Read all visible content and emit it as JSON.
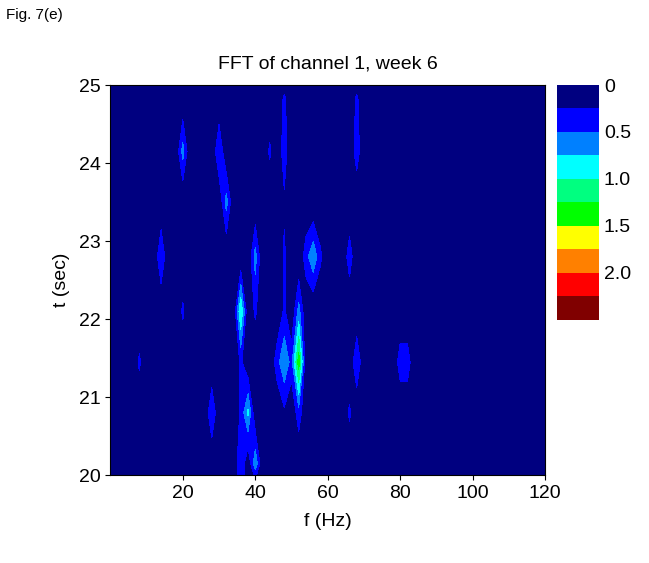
{
  "chart_data": {
    "type": "contour",
    "figure_label": "Fig. 7(e)",
    "title": "FFT of channel 1, week 6",
    "x_label": "f (Hz)",
    "y_label": "t (sec)",
    "x": [
      0,
      2,
      4,
      6,
      8,
      10,
      12,
      14,
      16,
      18,
      20,
      22,
      24,
      26,
      28,
      30,
      32,
      34,
      36,
      38,
      40,
      42,
      44,
      46,
      48,
      50,
      52,
      54,
      56,
      58,
      60,
      62,
      64,
      66,
      68,
      70,
      72,
      74,
      76,
      78,
      80,
      82,
      84,
      86,
      88,
      90,
      92,
      94,
      96,
      98,
      100,
      102,
      104,
      106,
      108,
      110,
      112,
      114,
      116,
      118,
      120
    ],
    "y": [
      20.0,
      20.15,
      20.8,
      21.45,
      22.1,
      22.8,
      23.5,
      24.15,
      24.85,
      25.0
    ],
    "z": [
      [
        0,
        0,
        0,
        0,
        0,
        0,
        0,
        0,
        0,
        0,
        0,
        0,
        0,
        0,
        0,
        0,
        0,
        0,
        0.5,
        0,
        0.3,
        0,
        0,
        0,
        0,
        0,
        0,
        0,
        0,
        0,
        0,
        0,
        0,
        0,
        0,
        0,
        0,
        0,
        0,
        0,
        0,
        0,
        0,
        0,
        0,
        0,
        0,
        0,
        0,
        0,
        0,
        0,
        0,
        0,
        0,
        0,
        0,
        0,
        0,
        0,
        0
      ],
      [
        0,
        0,
        0,
        0,
        0,
        0,
        0,
        0,
        0,
        0,
        0,
        0,
        0,
        0,
        0,
        0,
        0,
        0,
        0.5,
        0,
        0.7,
        0,
        0,
        0,
        0,
        0,
        0,
        0,
        0,
        0,
        0,
        0,
        0,
        0,
        0,
        0,
        0,
        0,
        0,
        0,
        0,
        0,
        0,
        0.1,
        0,
        0,
        0,
        0,
        0,
        0,
        0,
        0,
        0,
        0.15,
        0,
        0,
        0,
        0,
        0,
        0,
        0
      ],
      [
        0,
        0,
        0,
        0,
        0,
        0,
        0,
        0,
        0,
        0,
        0,
        0,
        0,
        0,
        0.5,
        0,
        0,
        0,
        0.3,
        0.8,
        0,
        0,
        0,
        0,
        0.2,
        0,
        0.4,
        0,
        0,
        0,
        0,
        0.2,
        0,
        0.3,
        0,
        0,
        0,
        0,
        0,
        0,
        0,
        0,
        0,
        0,
        0,
        0,
        0,
        0,
        0,
        0,
        0,
        0,
        0,
        0,
        0,
        0,
        0,
        0,
        0,
        0,
        0
      ],
      [
        0,
        0.15,
        0,
        0,
        0.3,
        0,
        0,
        0,
        0,
        0,
        0,
        0,
        0,
        0,
        0,
        0,
        0,
        0,
        0.3,
        0,
        0,
        0,
        0,
        0.4,
        0.7,
        0.4,
        1.4,
        0,
        0,
        0,
        0,
        0,
        0,
        0,
        0.5,
        0,
        0,
        0,
        0,
        0,
        0.4,
        0.4,
        0,
        0,
        0,
        0,
        0,
        0,
        0,
        0,
        0.15,
        0,
        0,
        0,
        0,
        0,
        0,
        0,
        0,
        0,
        0
      ],
      [
        0,
        0,
        0,
        0,
        0,
        0,
        0,
        0,
        0,
        0,
        0.3,
        0,
        0,
        0,
        0,
        0,
        0,
        0,
        1.0,
        0,
        0.3,
        0,
        0,
        0,
        0.3,
        0,
        0.6,
        0,
        0,
        0,
        0,
        0,
        0,
        0,
        0,
        0,
        0,
        0,
        0,
        0,
        0,
        0,
        0,
        0,
        0,
        0,
        0,
        0,
        0,
        0,
        0,
        0,
        0,
        0,
        0,
        0,
        0,
        0,
        0,
        0,
        0
      ],
      [
        0,
        0,
        0,
        0,
        0,
        0,
        0,
        0.5,
        0,
        0,
        0,
        0,
        0,
        0,
        0,
        0,
        0,
        0,
        0,
        0,
        0.6,
        0,
        0,
        0,
        0.3,
        0,
        0,
        0.4,
        0.7,
        0.3,
        0,
        0,
        0,
        0.4,
        0,
        0,
        0,
        0,
        0,
        0,
        0,
        0,
        0,
        0,
        0,
        0,
        0,
        0,
        0,
        0,
        0,
        0,
        0,
        0,
        0,
        0,
        0,
        0,
        0,
        0,
        0
      ],
      [
        0,
        0,
        0,
        0,
        0,
        0,
        0,
        0,
        0,
        0,
        0,
        0,
        0,
        0,
        0,
        0,
        0.6,
        0,
        0.2,
        0,
        0,
        0,
        0,
        0,
        0.2,
        0,
        0,
        0,
        0,
        0,
        0,
        0,
        0,
        0,
        0,
        0,
        0,
        0,
        0,
        0,
        0,
        0,
        0,
        0,
        0,
        0,
        0,
        0,
        0,
        0,
        0,
        0,
        0,
        0,
        0,
        0,
        0,
        0,
        0,
        0,
        0
      ],
      [
        0,
        0,
        0,
        0,
        0,
        0,
        0,
        0.2,
        0,
        0,
        0.6,
        0,
        0,
        0,
        0,
        0.5,
        0,
        0.2,
        0,
        0,
        0,
        0,
        0.3,
        0,
        0.4,
        0,
        0,
        0,
        0,
        0,
        0,
        0,
        0,
        0,
        0.4,
        0,
        0,
        0,
        0,
        0,
        0,
        0,
        0,
        0,
        0,
        0,
        0,
        0,
        0.2,
        0,
        0,
        0,
        0,
        0,
        0,
        0,
        0,
        0,
        0,
        0,
        0
      ],
      [
        0,
        0,
        0,
        0,
        0,
        0,
        0,
        0,
        0,
        0,
        0,
        0,
        0,
        0,
        0,
        0,
        0,
        0,
        0,
        0,
        0,
        0,
        0,
        0,
        0.3,
        0,
        0,
        0,
        0,
        0,
        0,
        0,
        0,
        0,
        0.3,
        0,
        0,
        0,
        0,
        0,
        0,
        0,
        0,
        0,
        0,
        0,
        0,
        0,
        0,
        0,
        0,
        0,
        0,
        0,
        0,
        0,
        0,
        0,
        0,
        0,
        0
      ],
      [
        0,
        0,
        0,
        0,
        0,
        0,
        0,
        0,
        0,
        0,
        0,
        0,
        0,
        0,
        0,
        0,
        0,
        0,
        0,
        0,
        0,
        0,
        0,
        0,
        0,
        0,
        0,
        0,
        0,
        0,
        0,
        0,
        0,
        0,
        0,
        0,
        0,
        0,
        0,
        0,
        0,
        0,
        0,
        0,
        0,
        0,
        0,
        0,
        0,
        0,
        0,
        0,
        0,
        0,
        0,
        0,
        0,
        0,
        0,
        0,
        0
      ]
    ],
    "xlim": [
      0,
      120
    ],
    "xticks": [
      20,
      40,
      60,
      80,
      100,
      120
    ],
    "ylim": [
      20,
      25
    ],
    "yticks": [
      20,
      21,
      22,
      23,
      24,
      25
    ],
    "colorbar": {
      "levels": [
        0,
        0.25,
        0.5,
        0.75,
        1,
        1.25,
        1.5,
        1.75,
        2,
        2.25,
        2.5
      ],
      "ticks": [
        0,
        0.5,
        {
          "value": 1,
          "label": "1.0"
        },
        1.5,
        {
          "value": 2,
          "label": "2.0"
        }
      ]
    }
  }
}
